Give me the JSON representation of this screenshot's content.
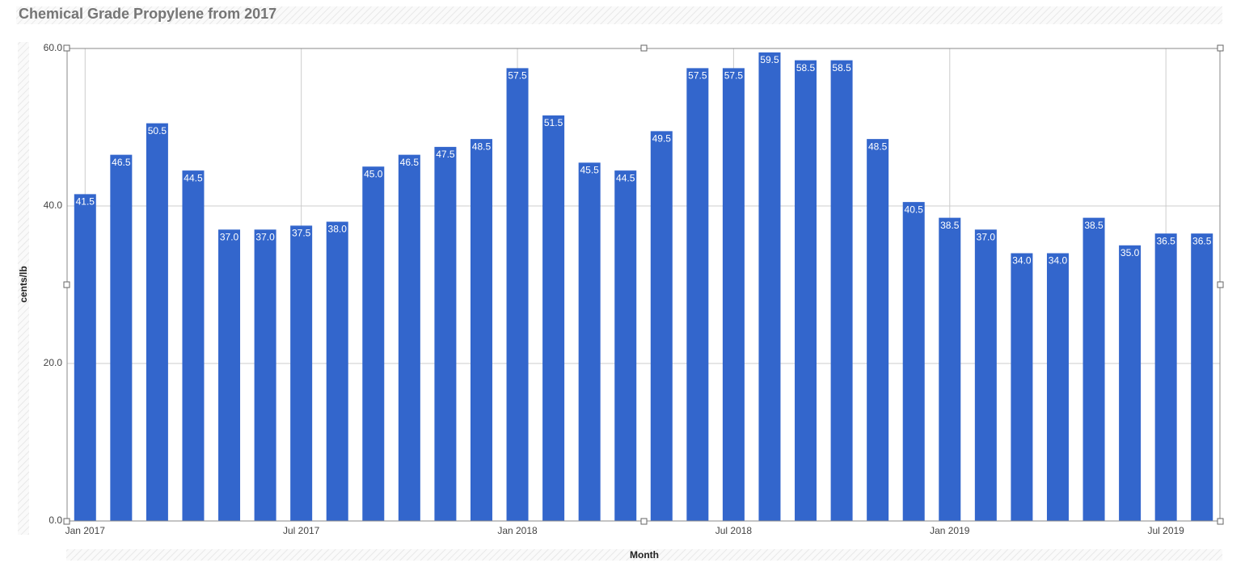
{
  "chart_data": {
    "type": "bar",
    "title": "Chemical Grade Propylene from 2017",
    "x_label": "Month",
    "y_label": "cents/lb",
    "categories": [
      "Jan 2017",
      null,
      null,
      null,
      null,
      null,
      "Jul 2017",
      null,
      null,
      null,
      null,
      null,
      "Jan 2018",
      null,
      null,
      null,
      null,
      null,
      "Jul 2018",
      null,
      null,
      null,
      null,
      null,
      "Jan 2019",
      null,
      null,
      null,
      null,
      null,
      "Jul 2019",
      null
    ],
    "values": [
      41.5,
      46.5,
      50.5,
      44.5,
      37,
      37,
      37.5,
      38,
      45,
      46.5,
      47.5,
      48.5,
      57.5,
      51.5,
      45.5,
      44.5,
      49.5,
      57.5,
      57.5,
      59.5,
      58.5,
      58.5,
      48.5,
      40.5,
      38.5,
      37,
      34,
      34,
      38.5,
      35,
      36.5,
      36.5
    ],
    "value_labels": [
      "41.5",
      "46.5",
      "50.5",
      "44.5",
      "37.0",
      "37.0",
      "37.5",
      "38.0",
      "45.0",
      "46.5",
      "47.5",
      "48.5",
      "57.5",
      "51.5",
      "45.5",
      "44.5",
      "49.5",
      "57.5",
      "57.5",
      "59.5",
      "58.5",
      "58.5",
      "48.5",
      "40.5",
      "38.5",
      "37.0",
      "34.0",
      "34.0",
      "38.5",
      "35.0",
      "36.5",
      "36.5"
    ],
    "color": "#3366cc",
    "ylim": [
      0,
      60
    ],
    "yticks": [
      {
        "value": 0,
        "label": "0.0"
      },
      {
        "value": 20,
        "label": "20.0"
      },
      {
        "value": 40,
        "label": "40.0"
      },
      {
        "value": 60,
        "label": "60.0"
      }
    ],
    "grid": true
  }
}
